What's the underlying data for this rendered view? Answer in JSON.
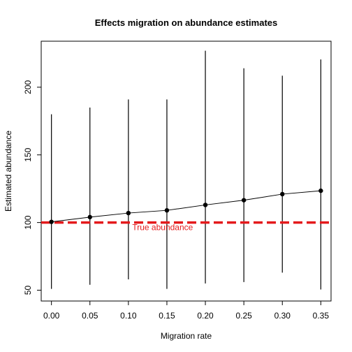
{
  "chart_data": {
    "type": "line",
    "title": "Effects migration on abundance estimates",
    "xlabel": "Migration rate",
    "ylabel": "Estimated abundance",
    "xlim": [
      -0.0133,
      0.3633
    ],
    "ylim": [
      42,
      234
    ],
    "x_ticks": [
      0.0,
      0.05,
      0.1,
      0.15,
      0.2,
      0.25,
      0.3,
      0.35
    ],
    "x_tick_labels": [
      "0.00",
      "0.05",
      "0.10",
      "0.15",
      "0.20",
      "0.25",
      "0.30",
      "0.35"
    ],
    "y_ticks": [
      50,
      100,
      150,
      200
    ],
    "y_tick_labels": [
      "50",
      "100",
      "150",
      "200"
    ],
    "grid": false,
    "series": [
      {
        "x": [
          0.0,
          0.05,
          0.1,
          0.15,
          0.2,
          0.25,
          0.3,
          0.35
        ],
        "y": [
          100.5,
          104,
          107,
          109,
          113,
          116.5,
          121,
          123.5
        ],
        "lower": [
          51,
          54,
          58,
          51,
          55,
          56,
          63,
          50.5
        ],
        "upper": [
          180,
          185,
          191,
          191,
          227,
          214,
          208.5,
          220.5
        ],
        "color": "#000000"
      }
    ],
    "reference_line": {
      "y": 100,
      "label": "True abundance",
      "label_x": 0.105,
      "color": "#e41a1c"
    }
  }
}
